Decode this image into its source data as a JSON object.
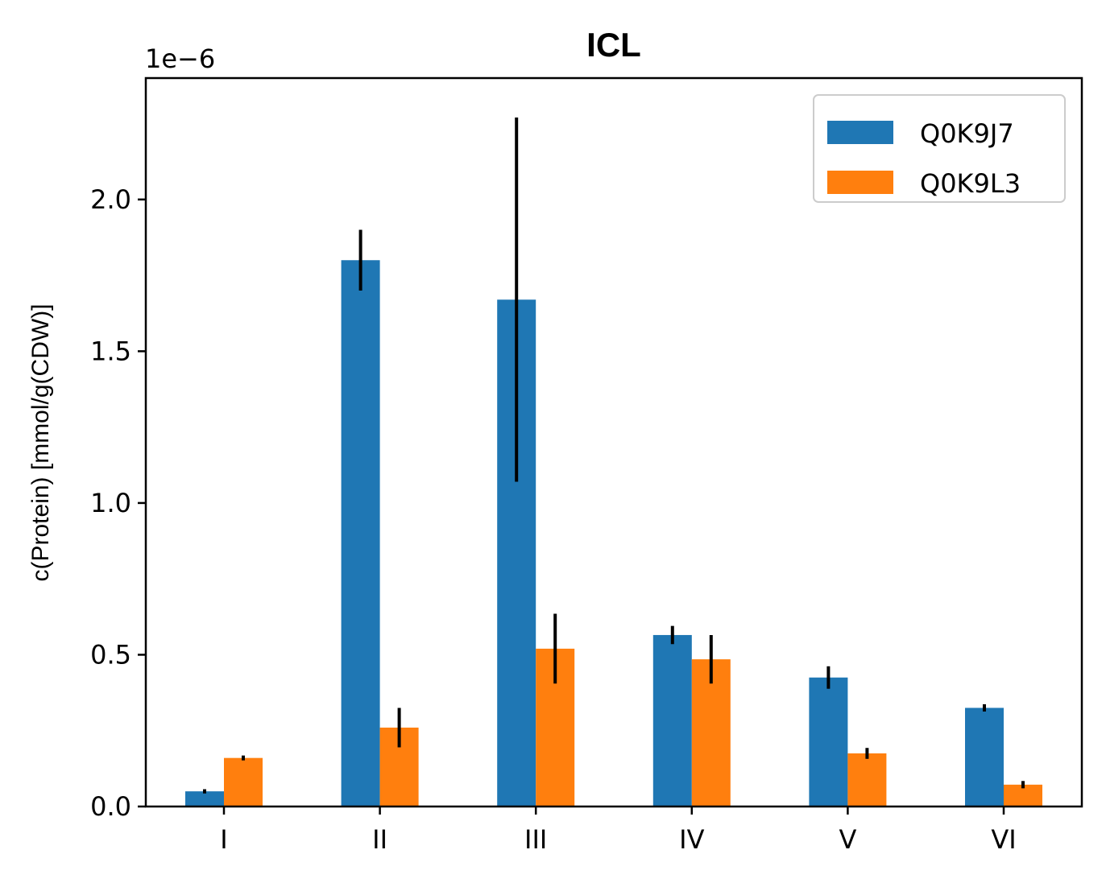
{
  "chart_data": {
    "type": "bar",
    "title": "ICL",
    "xlabel": "",
    "ylabel": "c(Protein) [mmol/g(CDW)]",
    "scale_label": "1e−6",
    "categories": [
      "I",
      "II",
      "III",
      "IV",
      "V",
      "VI"
    ],
    "series": [
      {
        "name": "Q0K9J7",
        "color": "#1f77b4",
        "values": [
          0.05,
          1.8,
          1.67,
          0.565,
          0.425,
          0.325
        ],
        "errors": [
          0.007,
          0.1,
          0.6,
          0.03,
          0.037,
          0.012
        ]
      },
      {
        "name": "Q0K9L3",
        "color": "#ff7f0e",
        "values": [
          0.16,
          0.26,
          0.52,
          0.485,
          0.175,
          0.072
        ],
        "errors": [
          0.008,
          0.065,
          0.115,
          0.08,
          0.018,
          0.012
        ]
      }
    ],
    "yticks": [
      0.0,
      0.5,
      1.0,
      1.5,
      2.0
    ],
    "ytick_labels": [
      "0.0",
      "0.5",
      "1.0",
      "1.5",
      "2.0"
    ],
    "ylim": [
      0,
      2.4
    ],
    "grid": false,
    "legend_position": "top-right"
  }
}
